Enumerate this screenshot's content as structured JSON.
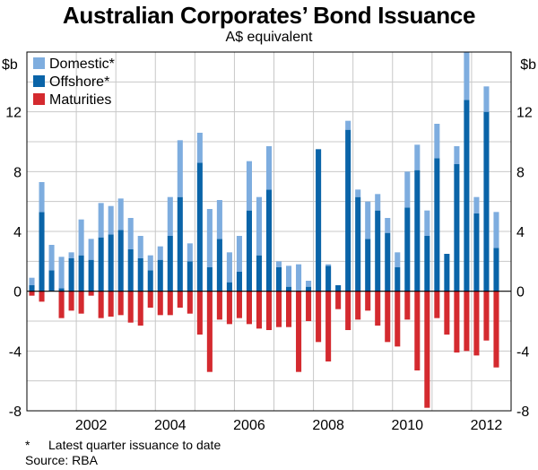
{
  "chart_data": {
    "type": "bar",
    "title": "Australian Corporates’ Bond Issuance",
    "subtitle": "A$ equivalent",
    "ylabel_left": "$b",
    "ylabel_right": "$b",
    "ylim": [
      -8,
      16
    ],
    "yticks": [
      -8,
      -4,
      0,
      4,
      8,
      12
    ],
    "xticks": [
      {
        "label": "2002",
        "pos": 6.5
      },
      {
        "label": "2004",
        "pos": 14.5
      },
      {
        "label": "2006",
        "pos": 22.5
      },
      {
        "label": "2008",
        "pos": 30.5
      },
      {
        "label": "2010",
        "pos": 38.5
      },
      {
        "label": "2012",
        "pos": 46.5
      }
    ],
    "categories": [
      "2000 Q4",
      "2001 Q1",
      "2001 Q2",
      "2001 Q3",
      "2001 Q4",
      "2002 Q1",
      "2002 Q2",
      "2002 Q3",
      "2002 Q4",
      "2003 Q1",
      "2003 Q2",
      "2003 Q3",
      "2003 Q4",
      "2004 Q1",
      "2004 Q2",
      "2004 Q3",
      "2004 Q4",
      "2005 Q1",
      "2005 Q2",
      "2005 Q3",
      "2005 Q4",
      "2006 Q1",
      "2006 Q2",
      "2006 Q3",
      "2006 Q4",
      "2007 Q1",
      "2007 Q2",
      "2007 Q3",
      "2007 Q4",
      "2008 Q1",
      "2008 Q2",
      "2008 Q3",
      "2008 Q4",
      "2009 Q1",
      "2009 Q2",
      "2009 Q3",
      "2009 Q4",
      "2010 Q1",
      "2010 Q2",
      "2010 Q3",
      "2010 Q4",
      "2011 Q1",
      "2011 Q2",
      "2011 Q3",
      "2011 Q4",
      "2012 Q1",
      "2012 Q2",
      "2012 Q3",
      "2012 Q4"
    ],
    "series": [
      {
        "name": "Offshore*",
        "color": "#0a64a8",
        "values": [
          0.4,
          5.3,
          1.4,
          0.2,
          2.2,
          2.4,
          2.1,
          3.6,
          3.8,
          4.1,
          2.8,
          2.2,
          1.4,
          2.1,
          3.7,
          6.3,
          2.0,
          8.6,
          1.6,
          3.5,
          0.6,
          1.3,
          5.4,
          2.4,
          6.8,
          1.6,
          0.3,
          0.0,
          0.3,
          9.5,
          1.7,
          0.4,
          10.8,
          6.3,
          3.5,
          5.4,
          3.9,
          1.6,
          5.6,
          8.1,
          3.7,
          8.9,
          2.5,
          8.5,
          12.8,
          5.2,
          12.0,
          2.9,
          0
        ]
      },
      {
        "name": "Domestic*",
        "color": "#7eaddf",
        "values": [
          0.5,
          2.0,
          1.7,
          2.1,
          0.4,
          2.4,
          1.4,
          2.3,
          1.9,
          2.1,
          2.1,
          1.5,
          1.0,
          0.9,
          2.6,
          3.8,
          1.2,
          2.0,
          3.9,
          2.6,
          2.0,
          2.4,
          3.3,
          3.9,
          2.9,
          0.4,
          1.4,
          1.8,
          0.4,
          0,
          0.1,
          0,
          0.6,
          0.5,
          2.5,
          1.1,
          1.0,
          1.0,
          2.4,
          1.7,
          1.7,
          2.3,
          0,
          1.2,
          3.2,
          1.1,
          1.7,
          2.4,
          0
        ]
      },
      {
        "name": "Maturities",
        "color": "#d42a2f",
        "values": [
          -0.3,
          -0.7,
          0,
          -1.8,
          -1.3,
          -1.5,
          -0.3,
          -1.8,
          -1.7,
          -1.6,
          -2.1,
          -2.3,
          -1.1,
          -1.6,
          -1.6,
          -1.1,
          -1.5,
          -2.9,
          -5.4,
          -1.9,
          -2.2,
          -1.8,
          -2.2,
          -2.5,
          -2.6,
          -2.4,
          -2.4,
          -5.4,
          -2.0,
          -3.4,
          -4.7,
          -1.2,
          -2.6,
          -1.9,
          -1.3,
          -2.3,
          -3.4,
          -3.7,
          -1.9,
          -5.3,
          -7.8,
          -1.8,
          -2.9,
          -4.1,
          -4.0,
          -4.3,
          -3.3,
          -5.1,
          0
        ]
      }
    ],
    "legend": [
      {
        "label": "Domestic*",
        "color": "#7eaddf"
      },
      {
        "label": "Offshore*",
        "color": "#0a64a8"
      },
      {
        "label": "Maturities",
        "color": "#d42a2f"
      }
    ],
    "legend_position": "top-left",
    "grid": true
  },
  "footnote": {
    "marker": "*",
    "text": "Latest quarter issuance to date"
  },
  "source": "Source: RBA"
}
